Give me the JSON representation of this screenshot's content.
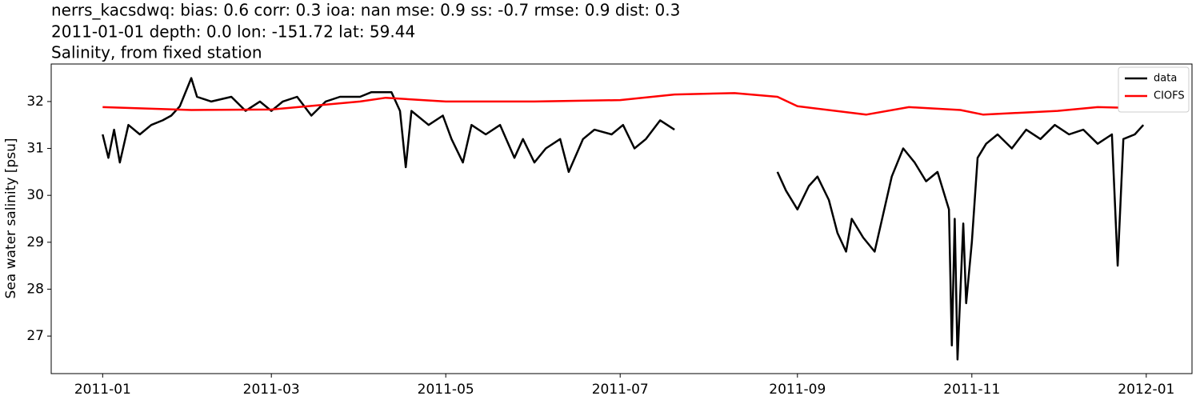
{
  "chart_data": {
    "type": "line",
    "title": "nerrs_kacsdwq: bias: 0.6  corr: 0.3  ioa: nan  mse: 0.9  ss: -0.7  rmse: 0.9  dist: 0.3",
    "subtitle": "2011-01-01 depth: 0.0 lon: -151.72 lat: 59.44",
    "subtitle2": "Salinity, from fixed station",
    "y_label": "Sea water salinity [psu]",
    "legend": "upper right",
    "xlim": [
      "2010-12-14",
      "2012-01-17"
    ],
    "xticks": [
      {
        "value": "2011-01-01",
        "label": "2011-01"
      },
      {
        "value": "2011-03-01",
        "label": "2011-03"
      },
      {
        "value": "2011-05-01",
        "label": "2011-05"
      },
      {
        "value": "2011-07-01",
        "label": "2011-07"
      },
      {
        "value": "2011-09-01",
        "label": "2011-09"
      },
      {
        "value": "2011-11-01",
        "label": "2011-11"
      },
      {
        "value": "2012-01-01",
        "label": "2012-01"
      }
    ],
    "ylim": [
      26.2,
      32.8
    ],
    "yticks": [
      27,
      28,
      29,
      30,
      31,
      32
    ],
    "series": [
      {
        "name": "data",
        "color": "#000000",
        "x": [
          "2011-01-01",
          "2011-01-03",
          "2011-01-05",
          "2011-01-07",
          "2011-01-10",
          "2011-01-14",
          "2011-01-18",
          "2011-01-22",
          "2011-01-25",
          "2011-01-28",
          "2011-02-01",
          "2011-02-03",
          "2011-02-08",
          "2011-02-15",
          "2011-02-20",
          "2011-02-25",
          "2011-03-01",
          "2011-03-05",
          "2011-03-10",
          "2011-03-15",
          "2011-03-20",
          "2011-03-25",
          "2011-04-01",
          "2011-04-05",
          "2011-04-12",
          "2011-04-15",
          "2011-04-17",
          "2011-04-19",
          "2011-04-25",
          "2011-04-30",
          "2011-05-03",
          "2011-05-07",
          "2011-05-10",
          "2011-05-15",
          "2011-05-20",
          "2011-05-25",
          "2011-05-28",
          "2011-06-01",
          "2011-06-05",
          "2011-06-10",
          "2011-06-13",
          "2011-06-18",
          "2011-06-22",
          "2011-06-28",
          "2011-07-02",
          "2011-07-06",
          "2011-07-10",
          "2011-07-15",
          "2011-07-20",
          "2011-08-01",
          "2011-08-25",
          "2011-08-28",
          "2011-09-01",
          "2011-09-05",
          "2011-09-08",
          "2011-09-12",
          "2011-09-15",
          "2011-09-18",
          "2011-09-20",
          "2011-09-24",
          "2011-09-28",
          "2011-10-01",
          "2011-10-04",
          "2011-10-08",
          "2011-10-12",
          "2011-10-16",
          "2011-10-20",
          "2011-10-24",
          "2011-10-25",
          "2011-10-26",
          "2011-10-27",
          "2011-10-29",
          "2011-10-30",
          "2011-11-01",
          "2011-11-03",
          "2011-11-06",
          "2011-11-10",
          "2011-11-15",
          "2011-11-20",
          "2011-11-25",
          "2011-11-30",
          "2011-12-05",
          "2011-12-10",
          "2011-12-15",
          "2011-12-20",
          "2011-12-22",
          "2011-12-24",
          "2011-12-28",
          "2011-12-31"
        ],
        "values": [
          31.3,
          30.8,
          31.4,
          30.7,
          31.5,
          31.3,
          31.5,
          31.6,
          31.7,
          31.9,
          32.5,
          32.1,
          32.0,
          32.1,
          31.8,
          32.0,
          31.8,
          32.0,
          32.1,
          31.7,
          32.0,
          32.1,
          32.1,
          32.2,
          32.2,
          31.8,
          30.6,
          31.8,
          31.5,
          31.7,
          31.2,
          30.7,
          31.5,
          31.3,
          31.5,
          30.8,
          31.2,
          30.7,
          31.0,
          31.2,
          30.5,
          31.2,
          31.4,
          31.3,
          31.5,
          31.0,
          31.2,
          31.6,
          31.4,
          null,
          30.5,
          30.1,
          29.7,
          30.2,
          30.4,
          29.9,
          29.2,
          28.8,
          29.5,
          29.1,
          28.8,
          29.6,
          30.4,
          31.0,
          30.7,
          30.3,
          30.5,
          29.7,
          26.8,
          29.5,
          26.5,
          29.4,
          27.7,
          29.0,
          30.8,
          31.1,
          31.3,
          31.0,
          31.4,
          31.2,
          31.5,
          31.3,
          31.4,
          31.1,
          31.3,
          28.5,
          31.2,
          31.3,
          31.5
        ]
      },
      {
        "name": "CIOFS",
        "color": "#ff0000",
        "x": [
          "2011-01-01",
          "2011-02-01",
          "2011-03-01",
          "2011-04-01",
          "2011-04-10",
          "2011-05-01",
          "2011-06-01",
          "2011-07-01",
          "2011-07-20",
          "2011-08-10",
          "2011-08-25",
          "2011-09-01",
          "2011-09-25",
          "2011-10-10",
          "2011-10-28",
          "2011-11-05",
          "2011-12-01",
          "2011-12-15",
          "2011-12-31"
        ],
        "values": [
          31.88,
          31.82,
          31.83,
          32.0,
          32.08,
          32.0,
          32.0,
          32.03,
          32.15,
          32.18,
          32.1,
          31.9,
          31.72,
          31.88,
          31.82,
          31.72,
          31.8,
          31.88,
          31.86
        ]
      }
    ]
  }
}
